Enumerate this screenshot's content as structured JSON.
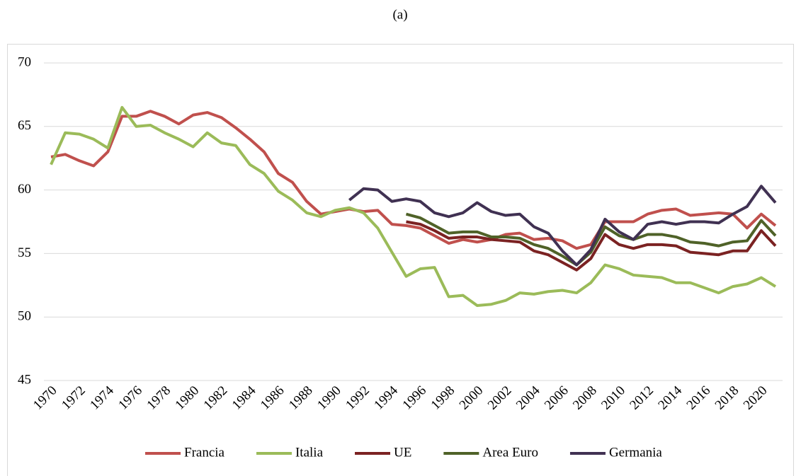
{
  "chart_data": {
    "type": "line",
    "title": "(a)",
    "categories": [
      "1970",
      null,
      "1972",
      null,
      "1974",
      null,
      "1976",
      null,
      "1978",
      null,
      "1980",
      null,
      "1982",
      null,
      "1984",
      null,
      "1986",
      null,
      "1988",
      null,
      "1990",
      null,
      "1992",
      null,
      "1994",
      null,
      "1996",
      null,
      "1998",
      null,
      "2000",
      null,
      "2002",
      null,
      "2004",
      null,
      "2006",
      null,
      "2008",
      null,
      "2010",
      null,
      "2012",
      null,
      "2014",
      null,
      "2016",
      null,
      "2018",
      null,
      "2020",
      null
    ],
    "ylim": [
      45,
      70
    ],
    "yticks": [
      45,
      50,
      55,
      60,
      65,
      70
    ],
    "grid": true,
    "legend": "bottom",
    "series": [
      {
        "name": "Francia",
        "color": "#c0504d",
        "values": [
          62.6,
          62.8,
          62.3,
          61.9,
          63.0,
          65.8,
          65.8,
          66.2,
          65.8,
          65.2,
          65.9,
          66.1,
          65.7,
          64.9,
          64.0,
          63.0,
          61.3,
          60.6,
          59.1,
          58.1,
          58.3,
          58.5,
          58.3,
          58.4,
          57.3,
          57.2,
          57.0,
          56.4,
          55.8,
          56.1,
          55.9,
          56.1,
          56.5,
          56.6,
          56.1,
          56.2,
          56.0,
          55.4,
          55.7,
          57.5,
          57.5,
          57.5,
          58.1,
          58.4,
          58.5,
          58.0,
          58.1,
          58.2,
          58.1,
          57.0,
          58.1,
          57.2
        ]
      },
      {
        "name": "Italia",
        "color": "#9bbb59",
        "values": [
          62.0,
          64.5,
          64.4,
          64.0,
          63.3,
          66.5,
          65.0,
          65.1,
          64.5,
          64.0,
          63.4,
          64.5,
          63.7,
          63.5,
          62.0,
          61.3,
          59.9,
          59.2,
          58.2,
          57.9,
          58.4,
          58.6,
          58.2,
          57.0,
          55.1,
          53.2,
          53.8,
          53.9,
          51.6,
          51.7,
          50.9,
          51.0,
          51.3,
          51.9,
          51.8,
          52.0,
          52.1,
          51.9,
          52.7,
          54.1,
          53.8,
          53.3,
          53.2,
          53.1,
          52.7,
          52.7,
          52.3,
          51.9,
          52.4,
          52.6,
          53.1,
          52.4
        ]
      },
      {
        "name": "UE",
        "color": "#7b2222",
        "values": [
          null,
          null,
          null,
          null,
          null,
          null,
          null,
          null,
          null,
          null,
          null,
          null,
          null,
          null,
          null,
          null,
          null,
          null,
          null,
          null,
          null,
          null,
          null,
          null,
          null,
          57.5,
          57.3,
          56.8,
          56.2,
          56.3,
          56.3,
          56.1,
          56.0,
          55.9,
          55.2,
          54.9,
          54.3,
          53.7,
          54.6,
          56.5,
          55.7,
          55.4,
          55.7,
          55.7,
          55.6,
          55.1,
          55.0,
          54.9,
          55.2,
          55.2,
          56.8,
          55.6
        ]
      },
      {
        "name": "Area Euro",
        "color": "#4f6228",
        "values": [
          null,
          null,
          null,
          null,
          null,
          null,
          null,
          null,
          null,
          null,
          null,
          null,
          null,
          null,
          null,
          null,
          null,
          null,
          null,
          null,
          null,
          null,
          null,
          null,
          null,
          58.1,
          57.8,
          57.2,
          56.6,
          56.7,
          56.7,
          56.3,
          56.3,
          56.2,
          55.7,
          55.4,
          54.8,
          54.1,
          55.1,
          57.1,
          56.4,
          56.1,
          56.5,
          56.5,
          56.3,
          55.9,
          55.8,
          55.6,
          55.9,
          56.0,
          57.6,
          56.4
        ]
      },
      {
        "name": "Germania",
        "color": "#403152",
        "values": [
          null,
          null,
          null,
          null,
          null,
          null,
          null,
          null,
          null,
          null,
          null,
          null,
          null,
          null,
          null,
          null,
          null,
          null,
          null,
          null,
          null,
          59.2,
          60.1,
          60.0,
          59.1,
          59.3,
          59.1,
          58.2,
          57.9,
          58.2,
          59.0,
          58.3,
          58.0,
          58.1,
          57.1,
          56.6,
          55.2,
          54.1,
          55.3,
          57.7,
          56.7,
          56.1,
          57.3,
          57.5,
          57.3,
          57.5,
          57.5,
          57.4,
          58.1,
          58.7,
          60.3,
          59.0
        ]
      }
    ]
  }
}
